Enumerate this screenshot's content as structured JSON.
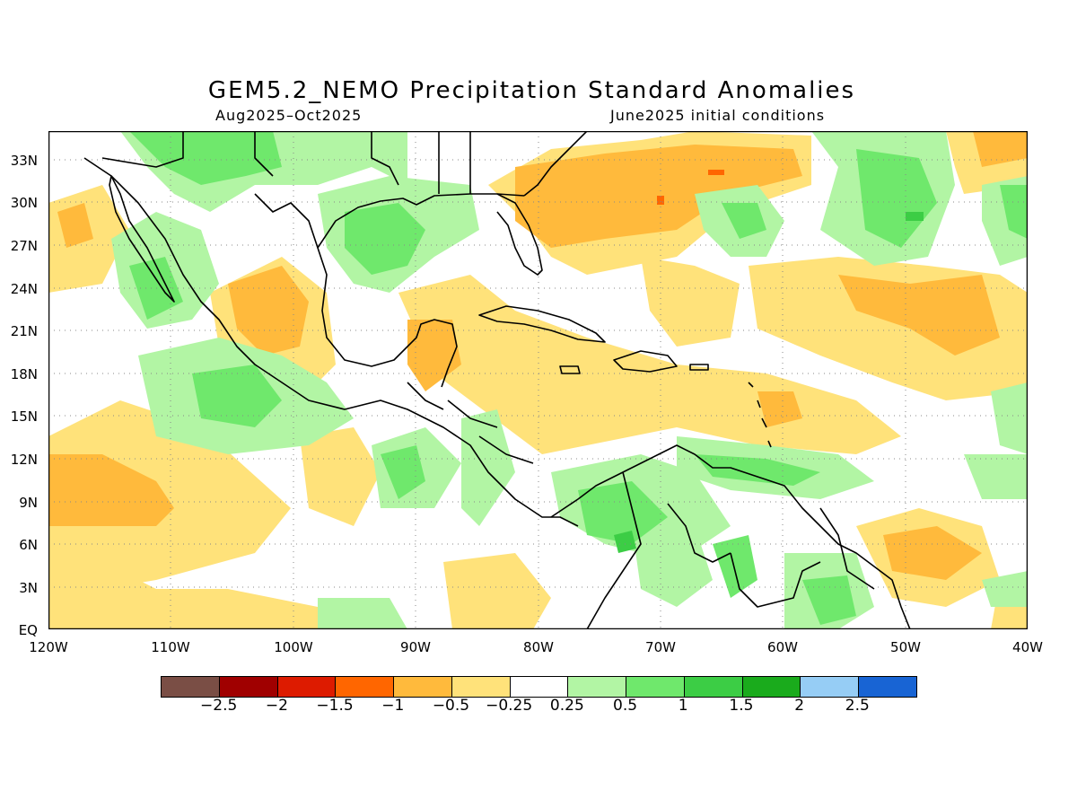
{
  "header": {
    "title": "GEM5.2_NEMO Precipitation Standard Anomalies",
    "period": "Aug2025–Oct2025",
    "init": "June2025 initial conditions"
  },
  "map": {
    "lon_range": [
      "120W",
      "40W"
    ],
    "lat_range": [
      "EQ",
      "35N"
    ],
    "grid": "dotted"
  },
  "axes": {
    "y_ticks": [
      "33N",
      "30N",
      "27N",
      "24N",
      "21N",
      "18N",
      "15N",
      "12N",
      "9N",
      "6N",
      "3N",
      "EQ"
    ],
    "x_ticks": [
      "120W",
      "110W",
      "100W",
      "90W",
      "80W",
      "70W",
      "60W",
      "50W",
      "40W"
    ]
  },
  "colorbar": {
    "colors": [
      "#7a4e45",
      "#a00000",
      "#dd1b00",
      "#ff6600",
      "#ffba3c",
      "#ffe27a",
      "#ffffff",
      "#b2f5a4",
      "#6fe86c",
      "#3ccd45",
      "#1aab1c",
      "#96cdf5",
      "#1864d4"
    ],
    "labels": [
      "−2.5",
      "−2",
      "−1.5",
      "−1",
      "−0.5",
      "−0.25",
      "0.25",
      "0.5",
      "1",
      "1.5",
      "2",
      "2.5"
    ]
  }
}
